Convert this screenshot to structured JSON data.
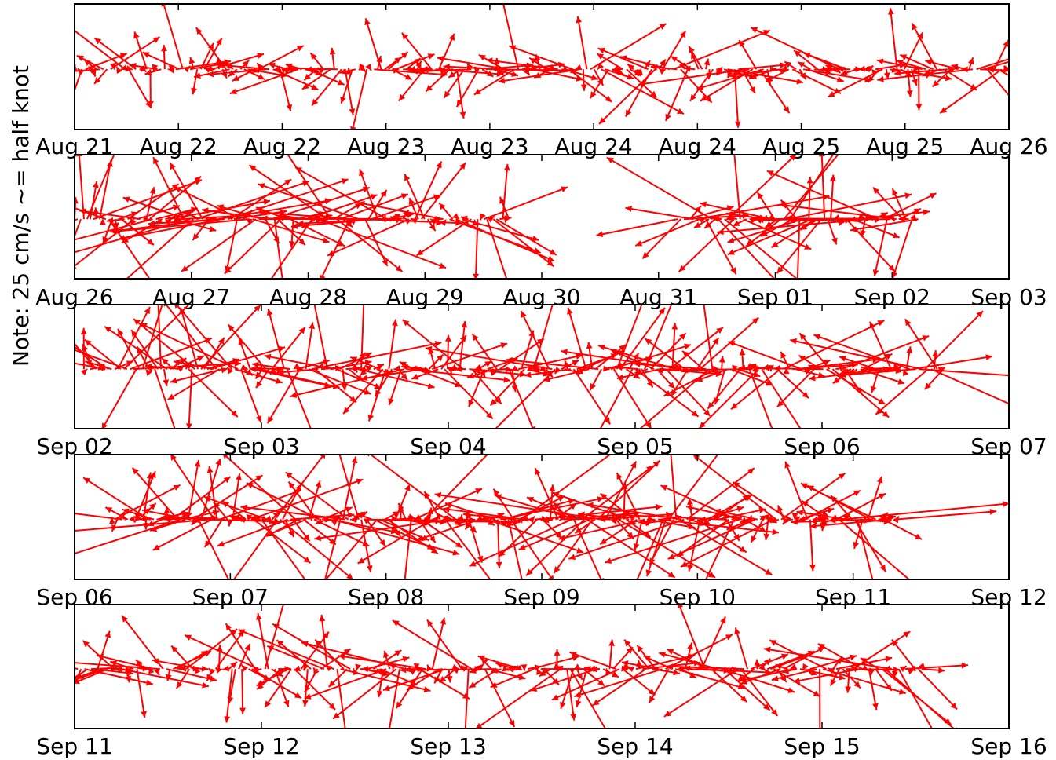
{
  "figure": {
    "ylabel": "Note: 25 cm/s ~= half knot",
    "arrow_color": "#ff0000"
  },
  "chart_data": [
    {
      "type": "quiver",
      "x_ticks": [
        "Aug 21",
        "Aug 22",
        "Aug 22",
        "Aug 23",
        "Aug 23",
        "Aug 24",
        "Aug 24",
        "Aug 25",
        "Aug 25",
        "Aug 26"
      ],
      "data_span": [
        0.0,
        1.0
      ],
      "seed": 11,
      "density": 260,
      "max_len": 0.55,
      "gaps": []
    },
    {
      "type": "quiver",
      "x_ticks": [
        "Aug 26",
        "Aug 27",
        "Aug 28",
        "Aug 29",
        "Aug 30",
        "Aug 31",
        "Sep 01",
        "Sep 02",
        "Sep 03"
      ],
      "data_span": [
        0.0,
        1.0
      ],
      "seed": 23,
      "density": 300,
      "max_len": 0.9,
      "gaps": [
        [
          0.465,
          0.645
        ],
        [
          0.905,
          1.0
        ]
      ]
    },
    {
      "type": "quiver",
      "x_ticks": [
        "Sep 02",
        "Sep 03",
        "Sep 04",
        "Sep 05",
        "Sep 06",
        "Sep 07"
      ],
      "data_span": [
        0.01,
        0.93
      ],
      "seed": 37,
      "density": 280,
      "max_len": 0.75,
      "gaps": []
    },
    {
      "type": "quiver",
      "x_ticks": [
        "Sep 06",
        "Sep 07",
        "Sep 08",
        "Sep 09",
        "Sep 10",
        "Sep 11",
        "Sep 12"
      ],
      "data_span": [
        0.04,
        0.88
      ],
      "seed": 53,
      "density": 300,
      "max_len": 0.85,
      "gaps": []
    },
    {
      "type": "quiver",
      "x_ticks": [
        "Sep 11",
        "Sep 12",
        "Sep 13",
        "Sep 14",
        "Sep 15",
        "Sep 16"
      ],
      "data_span": [
        0.0,
        0.91
      ],
      "seed": 71,
      "density": 260,
      "max_len": 0.65,
      "gaps": []
    }
  ]
}
